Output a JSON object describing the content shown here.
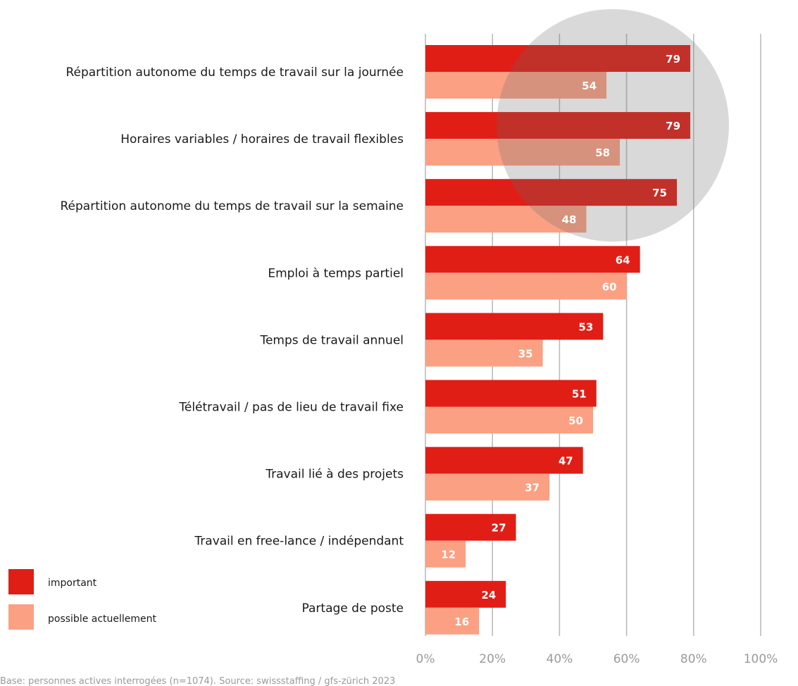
{
  "chart_data": {
    "type": "bar",
    "orientation": "horizontal",
    "categories": [
      "Répartition autonome du temps de travail sur la journée",
      "Horaires variables / horaires de travail flexibles",
      "Répartition autonome du temps de travail sur la semaine",
      "Emploi à temps partiel",
      "Temps de travail annuel",
      "Télétravail / pas de lieu de travail fixe",
      "Travail lié à des projets",
      "Travail en free-lance / indépendant",
      "Partage de poste"
    ],
    "series": [
      {
        "name": "important",
        "color": "#e01e16",
        "values": [
          79,
          79,
          75,
          64,
          53,
          51,
          47,
          27,
          24
        ]
      },
      {
        "name": "possible actuellement",
        "color": "#fba083",
        "values": [
          54,
          58,
          48,
          60,
          35,
          50,
          37,
          12,
          16
        ]
      }
    ],
    "xlim": [
      0,
      100
    ],
    "xticks": [
      0,
      20,
      40,
      60,
      80,
      100
    ],
    "xtick_labels": [
      "0%",
      "20%",
      "40%",
      "60%",
      "80%",
      "100%"
    ],
    "grid": true,
    "legend_position": "bottom-left",
    "highlight": "grey circle over the first three categories",
    "source": "Base: personnes actives interrogées (n=1074). Source: swissstaffing / gfs-zürich 2023"
  }
}
